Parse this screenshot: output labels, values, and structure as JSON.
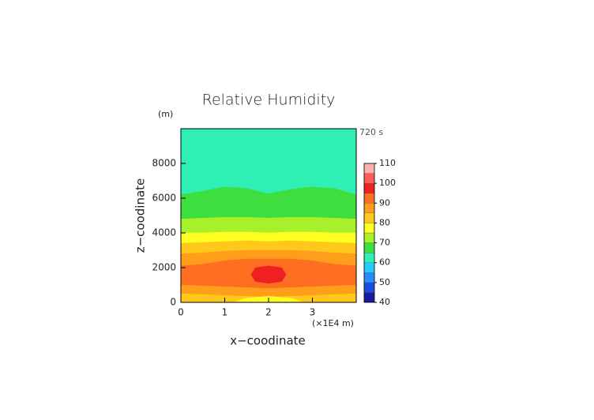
{
  "chart_data": {
    "type": "contour",
    "title": "Relative Humidity",
    "y_unit": "(m)",
    "time_label": "720 s",
    "y_label": "z−coodinate",
    "x_label": "x−coodinate",
    "x_unit": "(×1E4 m)",
    "xlim": [
      0,
      4
    ],
    "ylim": [
      0,
      10000
    ],
    "xticks": [
      0,
      1,
      2,
      3
    ],
    "yticks": [
      0,
      2000,
      4000,
      6000,
      8000
    ],
    "bands": [
      {
        "color": "#2ef0b4",
        "x": [
          0,
          0.5,
          1,
          1.5,
          2,
          2.5,
          3,
          3.5,
          4
        ],
        "upper": [
          10000,
          10000,
          10000,
          10000,
          10000,
          10000,
          10000,
          10000,
          10000
        ],
        "lower": [
          6200,
          6400,
          6650,
          6550,
          6250,
          6500,
          6650,
          6550,
          6200
        ]
      },
      {
        "color": "#3ede3e",
        "x": [
          0,
          0.5,
          1,
          1.5,
          2,
          2.5,
          3,
          3.5,
          4
        ],
        "upper": [
          6200,
          6400,
          6650,
          6550,
          6250,
          6500,
          6650,
          6550,
          6200
        ],
        "lower": [
          4800,
          4850,
          4900,
          4900,
          4850,
          4900,
          4900,
          4850,
          4800
        ]
      },
      {
        "color": "#a8f02a",
        "x": [
          0,
          0.5,
          1,
          1.5,
          2,
          2.5,
          3,
          3.5,
          4
        ],
        "upper": [
          4800,
          4850,
          4900,
          4900,
          4850,
          4900,
          4900,
          4850,
          4800
        ],
        "lower": [
          4000,
          4000,
          4050,
          4050,
          4000,
          4050,
          4050,
          4000,
          4000
        ]
      },
      {
        "color": "#ffff22",
        "x": [
          0,
          0.5,
          1,
          1.5,
          2,
          2.5,
          3,
          3.5,
          4
        ],
        "upper": [
          4000,
          4000,
          4050,
          4050,
          4000,
          4050,
          4050,
          4000,
          4000
        ],
        "lower": [
          3400,
          3450,
          3500,
          3550,
          3500,
          3550,
          3500,
          3450,
          3400
        ]
      },
      {
        "color": "#ffc81a",
        "x": [
          0,
          0.5,
          1,
          1.5,
          2,
          2.5,
          3,
          3.5,
          4
        ],
        "upper": [
          3400,
          3450,
          3500,
          3550,
          3500,
          3550,
          3500,
          3450,
          3400
        ],
        "lower": [
          2800,
          2850,
          2950,
          3000,
          3000,
          3000,
          2950,
          2850,
          2800
        ]
      },
      {
        "color": "#ff9e1a",
        "x": [
          0,
          0.5,
          1,
          1.5,
          2,
          2.5,
          3,
          3.5,
          4
        ],
        "upper": [
          2800,
          2850,
          2950,
          3000,
          3000,
          3000,
          2950,
          2850,
          2800
        ],
        "lower": [
          2100,
          2200,
          2400,
          2500,
          2500,
          2500,
          2400,
          2200,
          2100
        ]
      },
      {
        "color": "#ff6e20",
        "x": [
          0,
          0.5,
          1,
          1.5,
          2,
          2.5,
          3,
          3.5,
          4
        ],
        "upper": [
          2100,
          2200,
          2400,
          2500,
          2500,
          2500,
          2400,
          2200,
          2100
        ],
        "lower": [
          1000,
          950,
          900,
          850,
          800,
          850,
          900,
          950,
          1000
        ]
      },
      {
        "color": "#ff9e1a",
        "x": [
          0,
          0.5,
          1,
          1.5,
          2,
          2.5,
          3,
          3.5,
          4
        ],
        "upper": [
          1000,
          950,
          900,
          850,
          800,
          850,
          900,
          950,
          1000
        ],
        "lower": [
          500,
          450,
          400,
          350,
          300,
          350,
          400,
          450,
          500
        ]
      },
      {
        "color": "#ffc81a",
        "x": [
          0,
          0.5,
          1,
          1.5,
          2,
          2.5,
          3,
          3.5,
          4
        ],
        "upper": [
          500,
          450,
          400,
          350,
          300,
          350,
          400,
          450,
          500
        ],
        "lower": [
          0,
          0,
          0,
          0,
          0,
          0,
          0,
          0,
          0
        ]
      },
      {
        "color": "#ffff22",
        "x": [
          1.2,
          1.5,
          2,
          2.5,
          2.8
        ],
        "upper": [
          0,
          250,
          350,
          250,
          0
        ],
        "lower": [
          0,
          0,
          0,
          0,
          0
        ]
      },
      {
        "color": "#ee2020",
        "x": [
          1.6,
          1.7,
          2,
          2.3,
          2.4
        ],
        "upper": [
          1600,
          2000,
          2100,
          2000,
          1600
        ],
        "lower": [
          1600,
          1200,
          1100,
          1200,
          1600
        ]
      }
    ],
    "colorbar": {
      "levels": [
        40,
        45,
        50,
        55,
        60,
        65,
        70,
        75,
        80,
        85,
        90,
        95,
        100,
        105,
        110
      ],
      "colors": [
        "#1a1aa0",
        "#1a4ddd",
        "#2a8aff",
        "#22ccff",
        "#2ef0b4",
        "#3ede3e",
        "#a8f02a",
        "#ffff22",
        "#ffc81a",
        "#ff9e1a",
        "#ff6e20",
        "#ee2020",
        "#ff5a5a",
        "#ffb0b0"
      ],
      "ticks": [
        40,
        50,
        60,
        70,
        80,
        90,
        100,
        110
      ]
    }
  }
}
